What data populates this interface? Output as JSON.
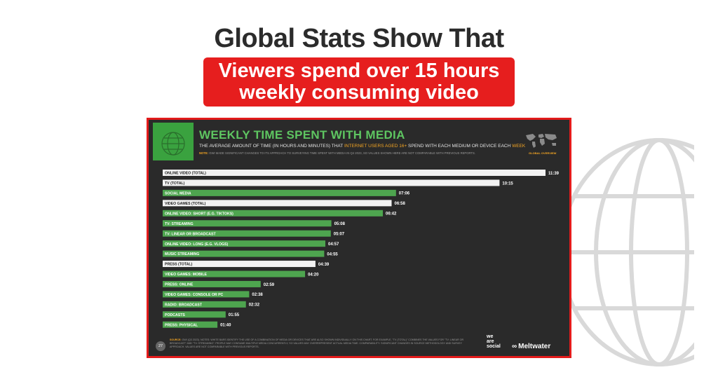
{
  "header": {
    "headline": "Global Stats Show That",
    "banner_line1": "Viewers spend over 15 hours",
    "banner_line2": "weekly consuming video"
  },
  "slide": {
    "title": "WEEKLY TIME SPENT WITH MEDIA",
    "subtitle_pre": "THE AVERAGE AMOUNT OF TIME (IN HOURS AND MINUTES) THAT ",
    "subtitle_highlight": "INTERNET USERS AGED 16+",
    "subtitle_post": " SPEND WITH EACH MEDIUM OR DEVICE EACH ",
    "subtitle_week": "WEEK",
    "note_label": "NOTE:",
    "note_text": "GWI MADE SIGNIFICANT CHANGES TO ITS APPROACH TO SURVEYING TIME SPENT WITH MEDIA IN Q4 2023, SO VALUES SHOWN HERE ARE NOT COMPARABLE WITH PREVIOUS REPORTS.",
    "map_label": "GLOBAL OVERVIEW",
    "page_number": "27",
    "footer_source_label": "SOURCE:",
    "footer_text": "GWI (Q3 2023). NOTES: WHITE BARS IDENTIFY THE USE OF A COMBINATION OF MEDIA OR DEVICES THAT ARE ALSO SHOWN INDIVIDUALLY ON THIS CHART. FOR EXAMPLE, \"TV (TOTAL)\" COMBINES THE VALUES FOR \"TV: LINEAR OR BROADCAST\" AND \"TV: STREAMING\". PEOPLE MAY CONSUME MULTIPLE MEDIA CONCURRENTLY, SO VALUES MAY OVERREPRESENT ACTUAL MEDIA TIME. COMPARABILITY: SIGNIFICANT CHANGES IN SOURCE METHODOLOGY AND SURVEY APPROACH. VALUES ARE NOT COMPARABLE WITH PREVIOUS REPORTS.",
    "brand_we": "we",
    "brand_are": "are",
    "brand_social": "social",
    "brand_meltwater": "Meltwater"
  },
  "colors": {
    "total_bar": "#f2f2f2",
    "component_bar": "#4ea54f",
    "value_label": "#ffffff",
    "bar_text_dark": "#1a1a1a",
    "bar_text_light": "#ffffff"
  },
  "chart_data": {
    "type": "bar",
    "orientation": "horizontal",
    "title": "WEEKLY TIME SPENT WITH MEDIA",
    "value_unit": "hours:minutes",
    "categories": [
      "ONLINE VIDEO (TOTAL)",
      "TV (TOTAL)",
      "SOCIAL MEDIA",
      "VIDEO GAMES (TOTAL)",
      "ONLINE VIDEO: SHORT (E.G. TIKTOKS)",
      "TV: STREAMING",
      "TV: LINEAR OR BROADCAST",
      "ONLINE VIDEO: LONG (E.G. VLOGS)",
      "MUSIC STREAMING",
      "PRESS (TOTAL)",
      "VIDEO GAMES: MOBILE",
      "PRESS: ONLINE",
      "VIDEO GAMES: CONSOLE OR PC",
      "RADIO: BROADCAST",
      "PODCASTS",
      "PRESS: PHYSICAL"
    ],
    "labels": [
      "11:39",
      "10:15",
      "07:06",
      "06:58",
      "06:42",
      "05:08",
      "05:07",
      "04:57",
      "04:55",
      "04:39",
      "04:20",
      "02:59",
      "02:38",
      "02:32",
      "01:55",
      "01:40"
    ],
    "values_minutes": [
      699,
      615,
      426,
      418,
      402,
      308,
      307,
      297,
      295,
      279,
      260,
      179,
      158,
      152,
      115,
      100
    ],
    "is_total": [
      true,
      true,
      false,
      true,
      false,
      false,
      false,
      false,
      false,
      true,
      false,
      false,
      false,
      false,
      false,
      false
    ],
    "grid": false
  }
}
